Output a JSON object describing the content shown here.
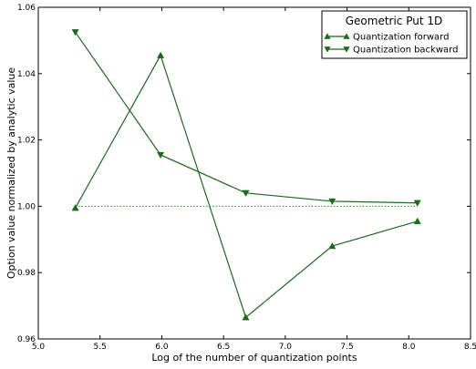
{
  "chart_data": {
    "type": "line",
    "legend_title": "Geometric Put 1D",
    "xlabel": "Log of the number of quantization points",
    "ylabel": "Option value normalized by analytic value",
    "xlim": [
      5.0,
      8.5
    ],
    "ylim": [
      0.96,
      1.06
    ],
    "x_ticks": [
      "5.0",
      "5.5",
      "6.0",
      "6.5",
      "7.0",
      "7.5",
      "8.0",
      "8.5"
    ],
    "y_ticks": [
      "0.96",
      "0.98",
      "1.00",
      "1.02",
      "1.04",
      "1.06"
    ],
    "grid": false,
    "legend_position": "top-right",
    "line_color": "#1a6b1a",
    "series": [
      {
        "name": "Quantization forward",
        "marker": "triangle-up",
        "x": [
          5.3,
          5.99,
          6.68,
          7.38,
          8.07
        ],
        "values": [
          0.9995,
          1.0455,
          0.9665,
          0.988,
          0.9955
        ]
      },
      {
        "name": "Quantization backward",
        "marker": "triangle-down",
        "x": [
          5.3,
          5.99,
          6.68,
          7.38,
          8.07
        ],
        "values": [
          1.0525,
          1.0155,
          1.004,
          1.0015,
          1.001
        ]
      }
    ],
    "reference_line": {
      "value": 1.0,
      "x_range": [
        5.3,
        8.07
      ],
      "style": "dotted"
    }
  }
}
